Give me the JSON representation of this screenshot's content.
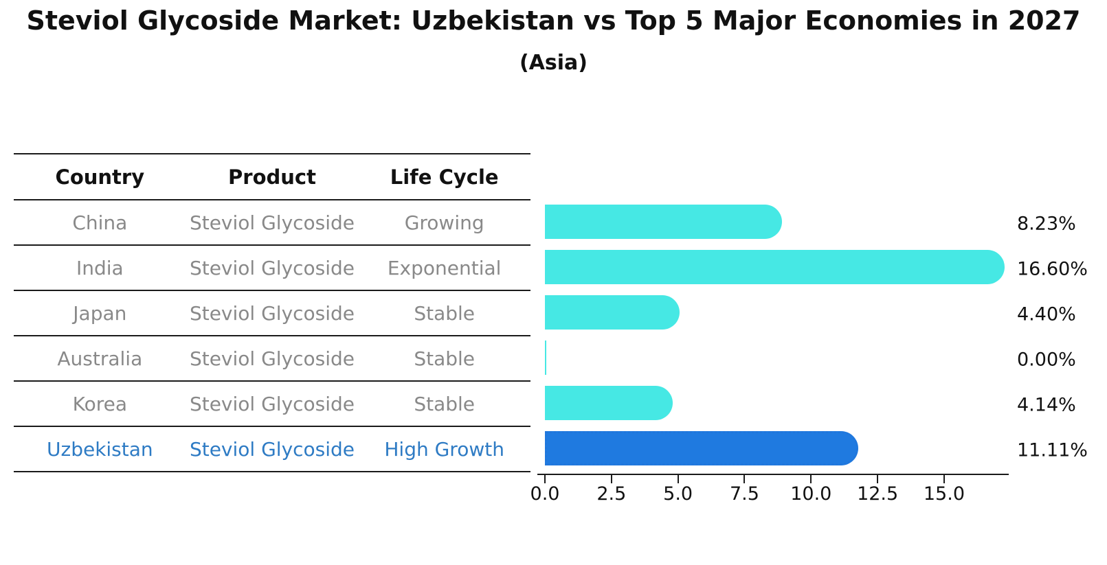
{
  "title": "Steviol Glycoside Market: Uzbekistan vs Top 5 Major Economies in 2027",
  "subtitle": "(Asia)",
  "table": {
    "headers": [
      "Country",
      "Product",
      "Life Cycle"
    ],
    "rows": [
      {
        "country": "China",
        "product": "Steviol Glycoside",
        "life_cycle": "Growing",
        "highlight": false
      },
      {
        "country": "India",
        "product": "Steviol Glycoside",
        "life_cycle": "Exponential",
        "highlight": false
      },
      {
        "country": "Japan",
        "product": "Steviol Glycoside",
        "life_cycle": "Stable",
        "highlight": false
      },
      {
        "country": "Australia",
        "product": "Steviol Glycoside",
        "life_cycle": "Stable",
        "highlight": false
      },
      {
        "country": "Korea",
        "product": "Steviol Glycoside",
        "life_cycle": "Stable",
        "highlight": false
      },
      {
        "country": "Uzbekistan",
        "product": "Steviol Glycoside",
        "life_cycle": "High Growth",
        "highlight": true
      }
    ]
  },
  "chart_data": {
    "type": "bar",
    "orientation": "horizontal",
    "title": "Steviol Glycoside Market: Uzbekistan vs Top 5 Major Economies in 2027",
    "subtitle": "(Asia)",
    "categories": [
      "China",
      "India",
      "Japan",
      "Australia",
      "Korea",
      "Uzbekistan"
    ],
    "values": [
      8.23,
      16.6,
      4.4,
      0.0,
      4.14,
      11.11
    ],
    "value_labels": [
      "8.23%",
      "16.60%",
      "4.40%",
      "0.00%",
      "4.14%",
      "11.11%"
    ],
    "highlight_category": "Uzbekistan",
    "x_tick_values": [
      0,
      2.5,
      5,
      7.5,
      10,
      12.5,
      15
    ],
    "x_tick_labels": [
      "0.0",
      "2.5",
      "5.0",
      "7.5",
      "10.0",
      "12.5",
      "15.0"
    ],
    "xlim": [
      0,
      17.4
    ],
    "grid": false,
    "legend": false,
    "colors": {
      "bar_default": "#46E8E4",
      "bar_highlight": "#1F7AE0",
      "bar_highlight_border": "#2076DB",
      "highlight_text": "#2E7BC4",
      "row_text": "#898989",
      "header_text": "#111111",
      "axis_text": "#111111"
    }
  }
}
